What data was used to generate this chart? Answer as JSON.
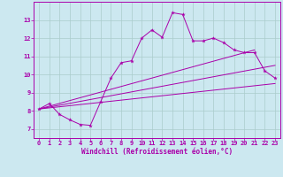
{
  "bg_color": "#cce8f0",
  "grid_color": "#aacccc",
  "line_color": "#aa00aa",
  "xlim": [
    -0.5,
    23.5
  ],
  "ylim": [
    6.5,
    14.0
  ],
  "xticks": [
    0,
    1,
    2,
    3,
    4,
    5,
    6,
    7,
    8,
    9,
    10,
    11,
    12,
    13,
    14,
    15,
    16,
    17,
    18,
    19,
    20,
    21,
    22,
    23
  ],
  "yticks": [
    7,
    8,
    9,
    10,
    11,
    12,
    13
  ],
  "xlabel": "Windchill (Refroidissement éolien,°C)",
  "main_x": [
    0,
    1,
    2,
    3,
    4,
    5,
    6,
    7,
    8,
    9,
    10,
    11,
    12,
    13,
    14,
    15,
    16,
    17,
    18,
    19,
    20,
    21,
    22,
    23
  ],
  "main_y": [
    8.1,
    8.4,
    7.8,
    7.5,
    7.25,
    7.2,
    8.5,
    9.8,
    10.65,
    10.75,
    12.0,
    12.45,
    12.05,
    13.4,
    13.3,
    11.85,
    11.85,
    12.0,
    11.75,
    11.35,
    11.2,
    11.2,
    10.2,
    9.8
  ],
  "lower_line_x": [
    0,
    23
  ],
  "lower_line_y": [
    8.1,
    9.5
  ],
  "upper_line_x": [
    0,
    21
  ],
  "upper_line_y": [
    8.1,
    11.35
  ],
  "mid_line_x": [
    0,
    23
  ],
  "mid_line_y": [
    8.1,
    10.5
  ]
}
